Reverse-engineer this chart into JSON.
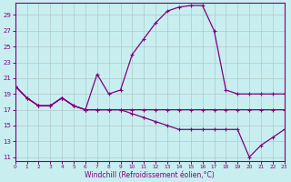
{
  "xlabel": "Windchill (Refroidissement éolien,°C)",
  "background_color": "#c8eef0",
  "grid_color": "#b0c8c8",
  "line_color": "#800080",
  "x_ticks": [
    0,
    1,
    2,
    3,
    4,
    5,
    6,
    7,
    8,
    9,
    10,
    11,
    12,
    13,
    14,
    15,
    16,
    17,
    18,
    19,
    20,
    21,
    22,
    23
  ],
  "y_ticks": [
    11,
    13,
    15,
    17,
    19,
    21,
    23,
    25,
    27,
    29
  ],
  "xlim": [
    0,
    23
  ],
  "ylim": [
    10.5,
    30.5
  ],
  "line1_x": [
    0,
    1,
    2,
    3,
    4,
    5,
    6,
    7,
    8,
    9,
    10,
    11,
    12,
    13,
    14,
    15,
    16,
    17,
    18,
    19,
    20,
    21,
    22,
    23
  ],
  "line1_y": [
    20.0,
    18.5,
    17.5,
    17.5,
    18.5,
    17.5,
    17.0,
    17.0,
    17.0,
    17.0,
    17.0,
    17.0,
    17.0,
    17.0,
    17.0,
    17.0,
    17.0,
    17.0,
    17.0,
    17.0,
    17.0,
    17.0,
    17.0,
    17.0
  ],
  "line2_x": [
    0,
    1,
    2,
    3,
    4,
    5,
    6,
    7,
    8,
    9,
    10,
    11,
    12,
    13,
    14,
    15,
    16,
    17,
    18,
    19,
    20,
    21,
    22,
    23
  ],
  "line2_y": [
    20.0,
    18.5,
    17.5,
    17.5,
    18.5,
    17.5,
    17.0,
    21.5,
    19.0,
    19.5,
    24.0,
    26.0,
    28.0,
    29.5,
    30.0,
    30.2,
    30.2,
    27.0,
    19.5,
    19.0,
    19.0,
    19.0,
    19.0,
    19.0
  ],
  "line3_x": [
    0,
    1,
    2,
    3,
    4,
    5,
    6,
    7,
    8,
    9,
    10,
    11,
    12,
    13,
    14,
    15,
    16,
    17,
    18,
    19,
    20,
    21,
    22,
    23
  ],
  "line3_y": [
    20.0,
    18.5,
    17.5,
    17.5,
    18.5,
    17.5,
    17.0,
    17.0,
    17.0,
    17.0,
    16.5,
    16.0,
    15.5,
    15.0,
    14.5,
    14.5,
    14.5,
    14.5,
    14.5,
    14.5,
    11.0,
    12.5,
    13.5,
    14.5
  ]
}
